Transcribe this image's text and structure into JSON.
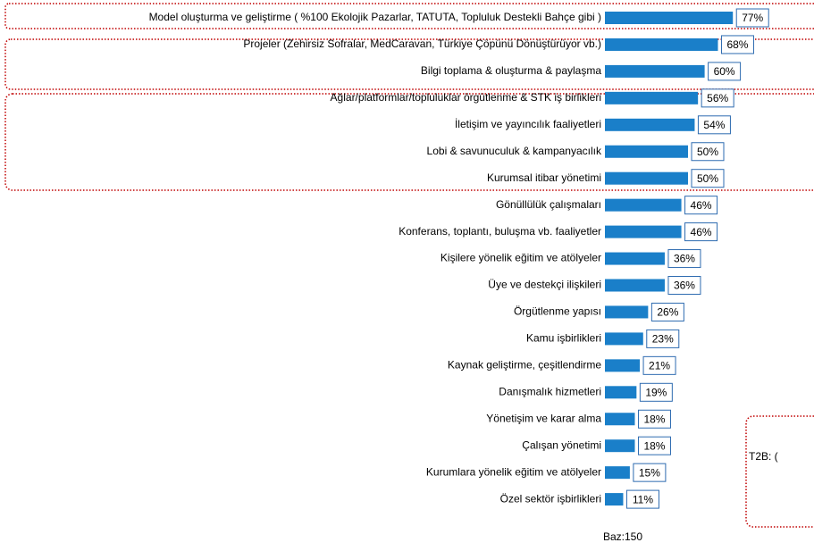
{
  "chart_data": {
    "type": "bar",
    "orientation": "horizontal",
    "categories": [
      "Model oluşturma ve geliştirme ( %100 Ekolojik Pazarlar, TATUTA, Topluluk Destekli Bahçe gibi )",
      "Projeler (Zehirsiz Sofralar, MedCaravan, Türkiye Çöpünü Dönüştürüyor vb.)",
      "Bilgi toplama & oluşturma & paylaşma",
      "Ağlar/platformlar/topluluklar örgütlenme & STK iş birlikleri",
      "İletişim ve yayıncılık faaliyetleri",
      "Lobi & savunuculuk & kampanyacılık",
      "Kurumsal itibar yönetimi",
      "Gönüllülük çalışmaları",
      "Konferans, toplantı, buluşma vb. faaliyetler",
      "Kişilere yönelik eğitim ve atölyeler",
      "Üye ve destekçi ilişkileri",
      "Örgütlenme yapısı",
      "Kamu işbirlikleri",
      "Kaynak geliştirme, çeşitlendirme",
      "Danışmalık hizmetleri",
      "Yönetişim ve karar alma",
      "Çalışan yönetimi",
      "Kurumlara yönelik eğitim ve atölyeler",
      "Özel sektör işbirlikleri"
    ],
    "values": [
      77,
      68,
      60,
      56,
      54,
      50,
      50,
      46,
      46,
      36,
      36,
      26,
      23,
      21,
      19,
      18,
      18,
      15,
      11
    ],
    "value_labels": [
      "77%",
      "68%",
      "60%",
      "56%",
      "54%",
      "50%",
      "50%",
      "46%",
      "46%",
      "36%",
      "36%",
      "26%",
      "23%",
      "21%",
      "19%",
      "18%",
      "18%",
      "15%",
      "11%"
    ],
    "color": "#1a7fc9",
    "footnote": "Baz:150",
    "annotation": "T2B: ("
  }
}
